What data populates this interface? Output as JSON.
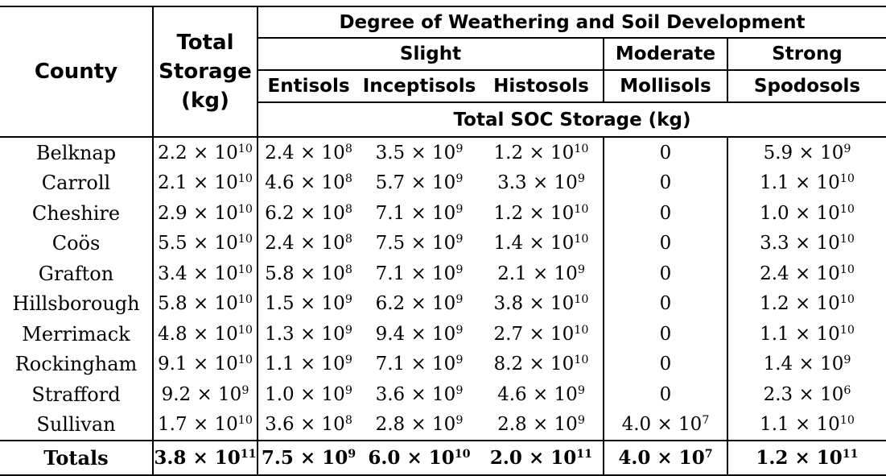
{
  "header": {
    "county": "County",
    "total_storage": [
      "Total",
      "Storage",
      "(kg)"
    ],
    "degree": "Degree of Weathering and Soil Development",
    "groups": [
      "Slight",
      "Moderate",
      "Strong"
    ],
    "orders": [
      "Entisols",
      "Inceptisols",
      "Histosols",
      "Mollisols",
      "Spodosols"
    ],
    "soc_label": "Total SOC Storage (kg)"
  },
  "rows": [
    {
      "county": "Belknap",
      "values": [
        [
          "2.2",
          "10"
        ],
        [
          "2.4",
          "8"
        ],
        [
          "3.5",
          "9"
        ],
        [
          "1.2",
          "10"
        ],
        [
          "0",
          ""
        ],
        [
          "5.9",
          "9"
        ]
      ]
    },
    {
      "county": "Carroll",
      "values": [
        [
          "2.1",
          "10"
        ],
        [
          "4.6",
          "8"
        ],
        [
          "5.7",
          "9"
        ],
        [
          "3.3",
          "9"
        ],
        [
          "0",
          ""
        ],
        [
          "1.1",
          "10"
        ]
      ]
    },
    {
      "county": "Cheshire",
      "values": [
        [
          "2.9",
          "10"
        ],
        [
          "6.2",
          "8"
        ],
        [
          "7.1",
          "9"
        ],
        [
          "1.2",
          "10"
        ],
        [
          "0",
          ""
        ],
        [
          "1.0",
          "10"
        ]
      ]
    },
    {
      "county": "Coös",
      "values": [
        [
          "5.5",
          "10"
        ],
        [
          "2.4",
          "8"
        ],
        [
          "7.5",
          "9"
        ],
        [
          "1.4",
          "10"
        ],
        [
          "0",
          ""
        ],
        [
          "3.3",
          "10"
        ]
      ]
    },
    {
      "county": "Grafton",
      "values": [
        [
          "3.4",
          "10"
        ],
        [
          "5.8",
          "8"
        ],
        [
          "7.1",
          "9"
        ],
        [
          "2.1",
          "9"
        ],
        [
          "0",
          ""
        ],
        [
          "2.4",
          "10"
        ]
      ]
    },
    {
      "county": "Hillsborough",
      "values": [
        [
          "5.8",
          "10"
        ],
        [
          "1.5",
          "9"
        ],
        [
          "6.2",
          "9"
        ],
        [
          "3.8",
          "10"
        ],
        [
          "0",
          ""
        ],
        [
          "1.2",
          "10"
        ]
      ]
    },
    {
      "county": "Merrimack",
      "values": [
        [
          "4.8",
          "10"
        ],
        [
          "1.3",
          "9"
        ],
        [
          "9.4",
          "9"
        ],
        [
          "2.7",
          "10"
        ],
        [
          "0",
          ""
        ],
        [
          "1.1",
          "10"
        ]
      ]
    },
    {
      "county": "Rockingham",
      "values": [
        [
          "9.1",
          "10"
        ],
        [
          "1.1",
          "9"
        ],
        [
          "7.1",
          "9"
        ],
        [
          "8.2",
          "10"
        ],
        [
          "0",
          ""
        ],
        [
          "1.4",
          "9"
        ]
      ]
    },
    {
      "county": "Strafford",
      "values": [
        [
          "9.2",
          "9"
        ],
        [
          "1.0",
          "9"
        ],
        [
          "3.6",
          "9"
        ],
        [
          "4.6",
          "9"
        ],
        [
          "0",
          ""
        ],
        [
          "2.3",
          "6"
        ]
      ]
    },
    {
      "county": "Sullivan",
      "values": [
        [
          "1.7",
          "10"
        ],
        [
          "3.6",
          "8"
        ],
        [
          "2.8",
          "9"
        ],
        [
          "2.8",
          "9"
        ],
        [
          "4.0",
          "7"
        ],
        [
          "1.1",
          "10"
        ]
      ]
    }
  ],
  "totals": {
    "label": "Totals",
    "values": [
      [
        "3.8",
        "11"
      ],
      [
        "7.5",
        "9"
      ],
      [
        "6.0",
        "10"
      ],
      [
        "2.0",
        "11"
      ],
      [
        "4.0",
        "7"
      ],
      [
        "1.2",
        "11"
      ]
    ]
  },
  "times_symbol": "× 10"
}
